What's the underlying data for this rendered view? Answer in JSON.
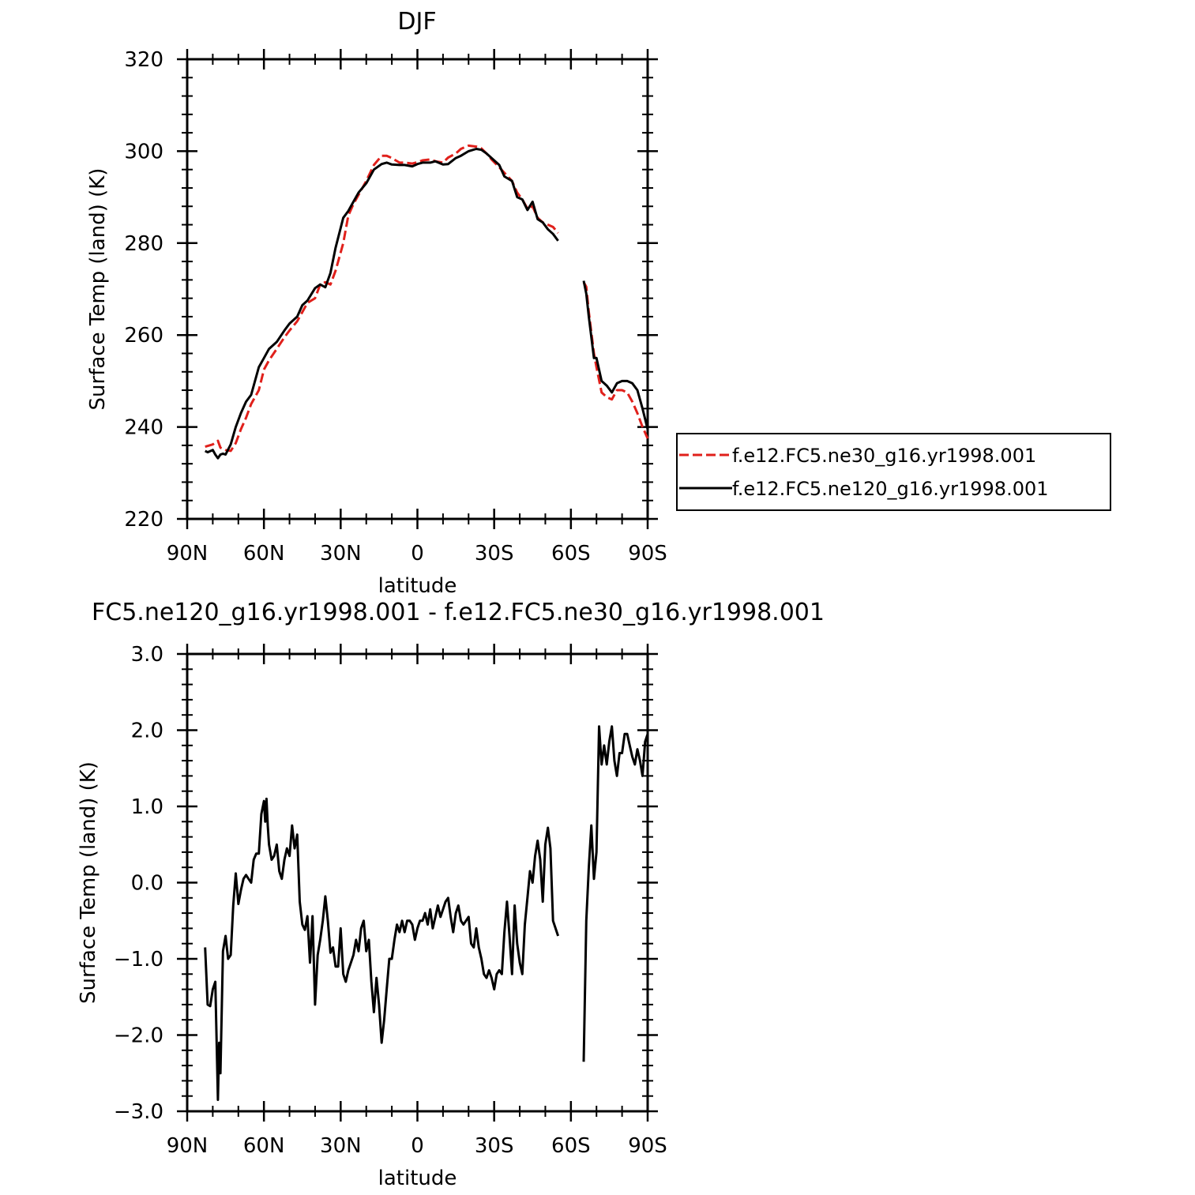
{
  "chart_data": [
    {
      "type": "line",
      "title": "DJF",
      "xlabel": "latitude",
      "ylabel": "Surface Temp (land) (K)",
      "xlim": [
        90,
        -90
      ],
      "ylim": [
        220,
        320
      ],
      "x_ticks": [
        90,
        60,
        30,
        0,
        -30,
        -60,
        -90
      ],
      "x_tick_labels": [
        "90N",
        "60N",
        "30N",
        "0",
        "30S",
        "60S",
        "90S"
      ],
      "y_ticks": [
        220,
        240,
        260,
        280,
        300,
        320
      ],
      "y_tick_labels": [
        "220",
        "240",
        "260",
        "280",
        "300",
        "320"
      ],
      "grid": false,
      "legend": "right",
      "colors": {
        "ne30": "#e0201b",
        "ne120": "#000000"
      },
      "series": [
        {
          "name": "f.e12.FC5.ne30_g16.yr1998.001",
          "style": "dashed",
          "segments": [
            {
              "x": [
                83,
                80,
                78,
                77,
                75,
                73,
                71,
                69,
                67,
                65,
                62,
                60,
                58,
                55,
                52,
                50,
                47,
                45,
                43,
                40,
                38,
                36,
                34,
                32,
                29,
                27,
                25,
                23,
                20,
                17,
                14,
                12,
                10,
                7,
                5,
                2,
                0,
                -2,
                -5,
                -7,
                -10,
                -12,
                -15,
                -17,
                -20,
                -23,
                -25,
                -27,
                -29,
                -32,
                -34,
                -37,
                -39,
                -41,
                -43,
                -45,
                -47,
                -49,
                -51,
                -53,
                -55
              ],
              "y": [
                235.7,
                236.2,
                237,
                235.5,
                235,
                234.8,
                236.5,
                239.5,
                242,
                245,
                248,
                252.5,
                254.5,
                257,
                259.5,
                261,
                263,
                265,
                267,
                268,
                271,
                271.5,
                271,
                274,
                280,
                286,
                288.5,
                290.5,
                293.5,
                297,
                299,
                299,
                298.5,
                297.5,
                297.5,
                297.3,
                297.6,
                298,
                298.2,
                297.8,
                297.5,
                298.6,
                299.5,
                300.5,
                301.2,
                301,
                300.6,
                299.5,
                298.2,
                296.5,
                295.3,
                293.5,
                291,
                289.5,
                287.5,
                288,
                285.5,
                284.5,
                284,
                283.5,
                282.2
              ]
            },
            {
              "x": [
                -65,
                -66,
                -67,
                -69,
                -70,
                -72,
                -74,
                -76,
                -78,
                -80,
                -82,
                -84,
                -86,
                -88,
                -90
              ],
              "y": [
                271.5,
                270.5,
                265,
                256,
                253,
                247.5,
                246.5,
                246,
                248,
                248,
                247.5,
                245.5,
                243,
                240,
                237.5
              ]
            }
          ]
        },
        {
          "name": "f.e12.FC5.ne120_g16.yr1998.001",
          "style": "solid",
          "segments": [
            {
              "x": [
                83,
                82,
                80,
                79,
                78,
                77,
                76,
                75,
                73,
                71,
                69,
                67,
                65,
                62,
                60,
                58,
                55,
                52,
                50,
                47,
                45,
                43,
                40,
                38,
                36,
                34,
                32,
                29,
                27,
                25,
                23,
                20,
                17,
                14,
                12,
                10,
                7,
                5,
                2,
                0,
                -2,
                -5,
                -7,
                -10,
                -12,
                -15,
                -17,
                -20,
                -23,
                -25,
                -27,
                -29,
                -32,
                -34,
                -37,
                -39,
                -41,
                -43,
                -45,
                -47,
                -49,
                -51,
                -53,
                -55
              ],
              "y": [
                234.8,
                234.5,
                235,
                234,
                233.2,
                234,
                234.2,
                234,
                236.2,
                240,
                243,
                245.5,
                247,
                253,
                255,
                257,
                258.5,
                261,
                262.5,
                264,
                266.5,
                267.5,
                270.2,
                271,
                270.4,
                273.5,
                279,
                285.5,
                287,
                289,
                291,
                293,
                296,
                297.2,
                297.5,
                297.1,
                297,
                297,
                296.7,
                297.2,
                297.5,
                297.5,
                297.8,
                297.1,
                297.2,
                298.5,
                299,
                300,
                300.5,
                300.3,
                299.5,
                298.5,
                297,
                294.5,
                293.5,
                290,
                289.5,
                287.2,
                289,
                285.2,
                284.5,
                283,
                282,
                280.5
              ]
            },
            {
              "x": [
                -65,
                -66,
                -67,
                -69,
                -70,
                -72,
                -74,
                -76,
                -78,
                -80,
                -82,
                -84,
                -86,
                -88,
                -90
              ],
              "y": [
                271.8,
                269,
                264,
                255,
                255,
                250,
                249,
                247.5,
                249.5,
                250,
                250,
                249.5,
                248,
                244,
                239.5
              ]
            }
          ]
        }
      ]
    },
    {
      "type": "line",
      "title": "FC5.ne120_g16.yr1998.001 - f.e12.FC5.ne30_g16.yr1998.001",
      "xlabel": "latitude",
      "ylabel": "Surface Temp (land) (K)",
      "xlim": [
        90,
        -90
      ],
      "ylim": [
        -3.0,
        3.0
      ],
      "x_ticks": [
        90,
        60,
        30,
        0,
        -30,
        -60,
        -90
      ],
      "x_tick_labels": [
        "90N",
        "60N",
        "30N",
        "0",
        "30S",
        "60S",
        "90S"
      ],
      "y_ticks": [
        -3.0,
        -2.0,
        -1.0,
        0.0,
        1.0,
        2.0,
        3.0
      ],
      "y_tick_labels": [
        "−3.0",
        "−2.0",
        "−1.0",
        "0.0",
        "1.0",
        "2.0",
        "3.0"
      ],
      "grid": false,
      "series": [
        {
          "style": "solid",
          "segments": [
            {
              "x": [
                83,
                82,
                81,
                80,
                79,
                78,
                77.5,
                77,
                76,
                75,
                74,
                73,
                72,
                71,
                70,
                69,
                68,
                67,
                66,
                65,
                64,
                63,
                62,
                61,
                60,
                59.5,
                59,
                58.5,
                58,
                57,
                56,
                55,
                54,
                53,
                52,
                51,
                50,
                49,
                48,
                47,
                46,
                45,
                44,
                43,
                42,
                41,
                40,
                39,
                38,
                37,
                36,
                35,
                34,
                33,
                32,
                31,
                30,
                29,
                28,
                27,
                26,
                25,
                24,
                23,
                22,
                21,
                20,
                19,
                18,
                17,
                16,
                15,
                14,
                13,
                12,
                11,
                10,
                9,
                8,
                7,
                6,
                5,
                4,
                3,
                2,
                1,
                0,
                -1,
                -2,
                -3,
                -4,
                -5,
                -6,
                -7,
                -8,
                -9,
                -10,
                -11,
                -12,
                -13,
                -14,
                -15,
                -16,
                -17,
                -18,
                -19,
                -20,
                -21,
                -22,
                -23,
                -24,
                -25,
                -26,
                -27,
                -28,
                -29,
                -30,
                -31,
                -32,
                -33,
                -34,
                -35,
                -36,
                -37,
                -38,
                -39,
                -40,
                -41,
                -42,
                -43,
                -44,
                -45,
                -46,
                -47,
                -48,
                -49,
                -50,
                -51,
                -52,
                -53,
                -54,
                -55
              ],
              "y": [
                -0.85,
                -1.6,
                -1.62,
                -1.4,
                -1.3,
                -2.85,
                -2.1,
                -2.5,
                -0.9,
                -0.7,
                -1.0,
                -0.95,
                -0.3,
                0.12,
                -0.28,
                -0.1,
                0.05,
                0.1,
                0.05,
                0.0,
                0.3,
                0.38,
                0.38,
                0.9,
                1.07,
                0.8,
                1.1,
                0.75,
                0.5,
                0.3,
                0.35,
                0.5,
                0.15,
                0.05,
                0.3,
                0.45,
                0.35,
                0.75,
                0.45,
                0.63,
                -0.25,
                -0.55,
                -0.62,
                -0.44,
                -1.05,
                -0.44,
                -1.6,
                -0.95,
                -0.75,
                -0.5,
                -0.18,
                -0.5,
                -0.92,
                -0.85,
                -1.1,
                -1.1,
                -0.6,
                -1.2,
                -1.3,
                -1.15,
                -1.05,
                -0.95,
                -0.75,
                -0.9,
                -0.6,
                -0.5,
                -0.9,
                -0.75,
                -1.3,
                -1.7,
                -1.25,
                -1.6,
                -2.1,
                -1.8,
                -1.4,
                -1.0,
                -1.0,
                -0.75,
                -0.55,
                -0.65,
                -0.5,
                -0.65,
                -0.5,
                -0.5,
                -0.55,
                -0.75,
                -0.6,
                -0.5,
                -0.5,
                -0.4,
                -0.55,
                -0.35,
                -0.6,
                -0.45,
                -0.3,
                -0.45,
                -0.35,
                -0.25,
                -0.2,
                -0.45,
                -0.65,
                -0.4,
                -0.3,
                -0.5,
                -0.55,
                -0.5,
                -0.45,
                -0.8,
                -0.85,
                -0.6,
                -0.85,
                -1.0,
                -1.2,
                -1.25,
                -1.15,
                -1.25,
                -1.4,
                -1.2,
                -1.15,
                -1.2,
                -0.65,
                -0.25,
                -0.7,
                -1.2,
                -0.3,
                -0.8,
                -1.05,
                -1.2,
                -0.55,
                -0.2,
                0.15,
                0.0,
                0.35,
                0.55,
                0.3,
                -0.25,
                0.5,
                0.72,
                0.45,
                -0.5,
                -0.6,
                -0.7
              ]
            },
            {
              "x": [
                -65,
                -66,
                -67,
                -68,
                -69,
                -70,
                -71,
                -72,
                -73,
                -74,
                -75,
                -76,
                -77,
                -78,
                -79,
                -80,
                -81,
                -82,
                -83,
                -84,
                -85,
                -86,
                -87,
                -88,
                -89,
                -90
              ],
              "y": [
                -2.35,
                -0.5,
                0.2,
                0.75,
                0.05,
                0.4,
                2.05,
                1.55,
                1.8,
                1.55,
                1.85,
                2.05,
                1.6,
                1.4,
                1.7,
                1.7,
                1.95,
                1.95,
                1.8,
                1.65,
                1.55,
                1.75,
                1.6,
                1.4,
                1.85,
                1.95
              ]
            }
          ]
        }
      ]
    }
  ]
}
